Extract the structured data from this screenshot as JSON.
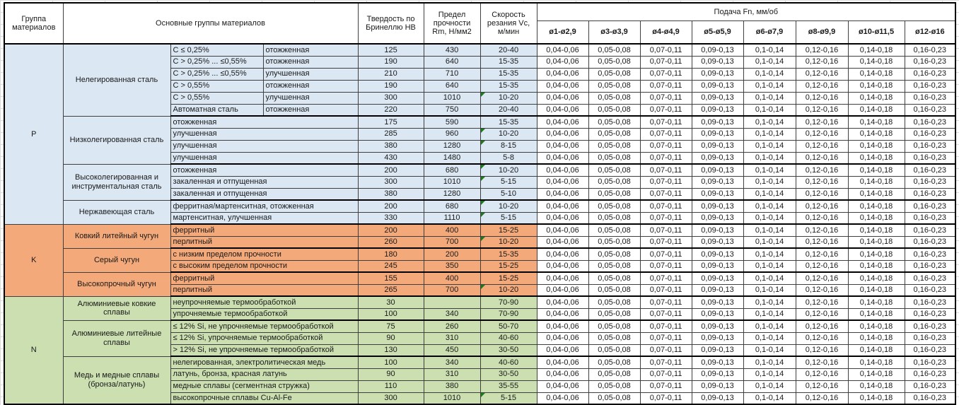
{
  "table": {
    "headers": {
      "material_group": "Группа материалов",
      "main_groups": "Основные группы материалов",
      "hardness": "Твердость по Бринеллю HB",
      "strength": "Предел прочности Rm, Н/мм2",
      "speed": "Скорость резания Vc, м/мин",
      "feed": "Подача Fn, мм/об",
      "feed_columns": [
        "ø1-ø2,9",
        "ø3-ø3,9",
        "ø4-ø4,9",
        "ø5-ø5,9",
        "ø6-ø7,9",
        "ø8-ø9,9",
        "ø10-ø11,5",
        "ø12-ø16"
      ]
    },
    "feed_values": [
      "0,04-0,06",
      "0,05-0,08",
      "0,07-0,11",
      "0,09-0,13",
      "0,1-0,14",
      "0,12-0,16",
      "0,14-0,18",
      "0,16-0,23"
    ],
    "flag_color": "#1e7a1e",
    "sections": [
      {
        "letter": "P",
        "color": "#dbe8f4",
        "groups": [
          {
            "name": "Нелегированная сталь",
            "rows": [
              {
                "c1": "C ≤ 0,25%",
                "c2": "отожженная",
                "hb": "125",
                "rm": "430",
                "vc": "20-40",
                "flag": false
              },
              {
                "c1": "C > 0,25% ... ≤0,55%",
                "c2": "отожженная",
                "hb": "190",
                "rm": "640",
                "vc": "15-35",
                "flag": false
              },
              {
                "c1": "C > 0,25% ... ≤0,55%",
                "c2": "улучшенная",
                "hb": "210",
                "rm": "710",
                "vc": "15-35",
                "flag": false
              },
              {
                "c1": "C > 0,55%",
                "c2": "отожженная",
                "hb": "190",
                "rm": "640",
                "vc": "15-35",
                "flag": false
              },
              {
                "c1": "C > 0,55%",
                "c2": "улучшенная",
                "hb": "300",
                "rm": "1010",
                "vc": "10-20",
                "flag": true
              },
              {
                "c1": "Автоматная сталь",
                "c2": "отожженная",
                "hb": "220",
                "rm": "750",
                "vc": "20-40",
                "flag": false
              }
            ]
          },
          {
            "name": "Низколегированная сталь",
            "rows": [
              {
                "c1": "отожженная",
                "hb": "175",
                "rm": "590",
                "vc": "15-35",
                "flag": false
              },
              {
                "c1": "улучшенная",
                "hb": "285",
                "rm": "960",
                "vc": "10-20",
                "flag": true
              },
              {
                "c1": "улучшенная",
                "hb": "380",
                "rm": "1280",
                "vc": "8-15",
                "flag": true
              },
              {
                "c1": "улучшенная",
                "hb": "430",
                "rm": "1480",
                "vc": "5-8",
                "flag": false
              }
            ]
          },
          {
            "name": "Высоколегированная и инструментальная сталь",
            "rows": [
              {
                "c1": "отожженная",
                "hb": "200",
                "rm": "680",
                "vc": "10-20",
                "flag": true
              },
              {
                "c1": "закаленная и отпущенная",
                "hb": "300",
                "rm": "1010",
                "vc": "5-15",
                "flag": true
              },
              {
                "c1": "закаленная и отпущенная",
                "hb": "380",
                "rm": "1280",
                "vc": "5-10",
                "flag": false
              }
            ]
          },
          {
            "name": "Нержавеющая сталь",
            "rows": [
              {
                "c1": "ферритная/мартенситная, отожженная",
                "hb": "200",
                "rm": "680",
                "vc": "10-20",
                "flag": true
              },
              {
                "c1": "мартенситная, улучшенная",
                "hb": "330",
                "rm": "1110",
                "vc": "5-15",
                "flag": true
              }
            ]
          }
        ]
      },
      {
        "letter": "K",
        "color": "#f3a97a",
        "groups": [
          {
            "name": "Ковкий литейный чугун",
            "rows": [
              {
                "c1": "ферритный",
                "hb": "200",
                "rm": "400",
                "vc": "15-25",
                "flag": false
              },
              {
                "c1": "перлитный",
                "hb": "260",
                "rm": "700",
                "vc": "10-20",
                "flag": true
              }
            ]
          },
          {
            "name": "Серый чугун",
            "rows": [
              {
                "c1": "с низким пределом прочности",
                "hb": "180",
                "rm": "200",
                "vc": "15-35",
                "flag": false
              },
              {
                "c1": "с высоким пределом прочности",
                "hb": "245",
                "rm": "350",
                "vc": "15-25",
                "flag": false
              }
            ]
          },
          {
            "name": "Высокопрочный чугун",
            "rows": [
              {
                "c1": "ферритный",
                "hb": "155",
                "rm": "400",
                "vc": "15-25",
                "flag": false
              },
              {
                "c1": "перлитный",
                "hb": "265",
                "rm": "700",
                "vc": "10-20",
                "flag": true
              }
            ]
          }
        ]
      },
      {
        "letter": "N",
        "color": "#cbdfb1",
        "groups": [
          {
            "name": "Алюминиевые ковкие сплавы",
            "rows": [
              {
                "c1": "неупрочняемые термообработкой",
                "hb": "30",
                "rm": "",
                "vc": "70-90",
                "flag": false
              },
              {
                "c1": "упрочняемые термообработкой",
                "hb": "100",
                "rm": "340",
                "vc": "70-90",
                "flag": false
              }
            ]
          },
          {
            "name": "Алюминиевые литейные сплавы",
            "rows": [
              {
                "c1": "≤ 12% Si, не упрочняемые термообработкой",
                "hb": "75",
                "rm": "260",
                "vc": "50-70",
                "flag": false
              },
              {
                "c1": "≤ 12% Si, упрочняемые термообработкой",
                "hb": "90",
                "rm": "310",
                "vc": "40-60",
                "flag": false
              },
              {
                "c1": "> 12% Si, не упрочняемые термообработкой",
                "hb": "130",
                "rm": "450",
                "vc": "30-50",
                "flag": false
              }
            ]
          },
          {
            "name": "Медь и медные сплавы (бронза/латунь)",
            "rows": [
              {
                "c1": "нелегированная, электролитическая медь",
                "hb": "100",
                "rm": "340",
                "vc": "40-60",
                "flag": false
              },
              {
                "c1": "латунь, бронза, красная латунь",
                "hb": "90",
                "rm": "310",
                "vc": "30-50",
                "flag": false
              },
              {
                "c1": "медные сплавы (сегментная стружка)",
                "hb": "110",
                "rm": "380",
                "vc": "35-55",
                "flag": false
              },
              {
                "c1": "высокопрочные сплавы Cu-Al-Fe",
                "hb": "300",
                "rm": "1010",
                "vc": "5-15",
                "flag": true
              }
            ]
          }
        ]
      }
    ]
  }
}
